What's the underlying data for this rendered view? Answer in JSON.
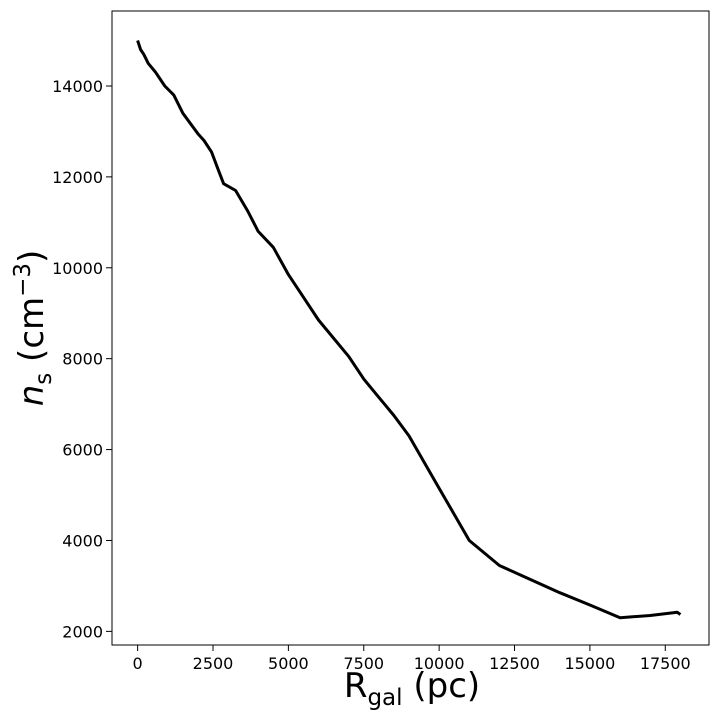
{
  "chart_data": {
    "type": "line",
    "title": "",
    "xlabel": "R_gal (pc)",
    "ylabel": "n_s (cm^-3)",
    "xlabel_parts": {
      "main": "R",
      "sub": "gal",
      "rest": " (pc)"
    },
    "ylabel_parts": {
      "main": "n",
      "sub": "s",
      "rest": " (cm",
      "sup": "−3",
      "close": ")"
    },
    "xlim": [
      -850,
      18950
    ],
    "ylim": [
      1700,
      15650
    ],
    "xticks": [
      0,
      2500,
      5000,
      7500,
      10000,
      12500,
      15000,
      17500
    ],
    "yticks": [
      2000,
      4000,
      6000,
      8000,
      10000,
      12000,
      14000
    ],
    "grid": false,
    "line_color": "#000000",
    "series": [
      {
        "x": [
          0,
          100,
          200,
          350,
          600,
          900,
          1200,
          1500,
          2000,
          2200,
          2450,
          2650,
          2850,
          3250,
          3650,
          4000,
          4500,
          5000,
          5500,
          6000,
          7000,
          7500,
          8000,
          8500,
          9000,
          10000,
          11000,
          12000,
          13000,
          14000,
          15000,
          16000,
          17000,
          17900,
          18000
        ],
        "y": [
          15000,
          14800,
          14700,
          14500,
          14300,
          14000,
          13800,
          13400,
          12950,
          12800,
          12550,
          12200,
          11850,
          11700,
          11250,
          10800,
          10450,
          9850,
          9350,
          8850,
          8050,
          7550,
          7150,
          6750,
          6300,
          5150,
          4000,
          3450,
          3150,
          2850,
          2580,
          2300,
          2350,
          2420,
          2370
        ]
      }
    ]
  }
}
